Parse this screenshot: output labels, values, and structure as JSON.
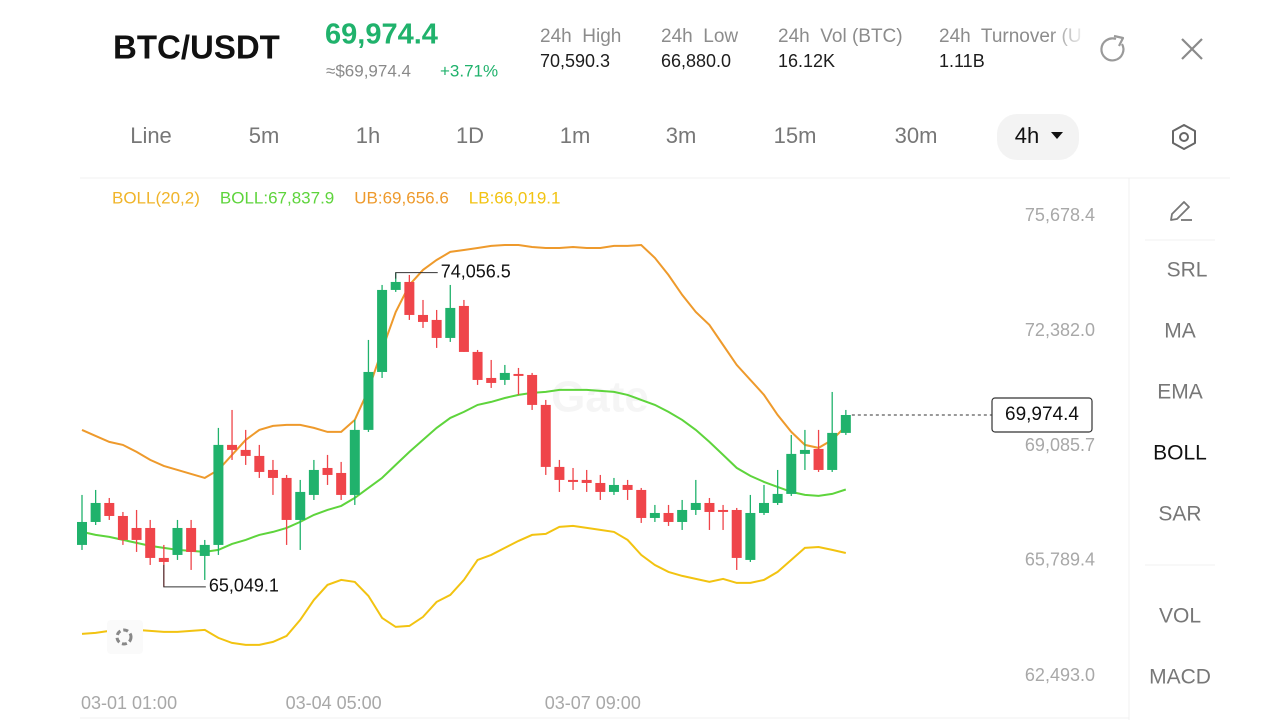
{
  "header": {
    "symbol": "BTC/USDT",
    "price": "69,974.4",
    "approx_price": "≈$69,974.4",
    "change": "+3.71%",
    "stats": [
      {
        "label": "24h  High",
        "value": "70,590.3"
      },
      {
        "label": "24h  Low",
        "value": "66,880.0"
      },
      {
        "label": "24h  Vol (BTC)",
        "value": "16.12K"
      },
      {
        "label": "24h  Turnover (U",
        "value": "1.11B"
      }
    ]
  },
  "intervals": [
    "Line",
    "5m",
    "1h",
    "1D",
    "1m",
    "3m",
    "15m",
    "30m",
    "4h"
  ],
  "active_interval": 8,
  "indicators": [
    "SRL",
    "MA",
    "EMA",
    "BOLL",
    "SAR",
    "VOL",
    "MACD"
  ],
  "active_indicator": 3,
  "chart_data": {
    "type": "candlestick",
    "indicator_legend": [
      {
        "text": "BOLL(20,2)",
        "color": "#f0b429"
      },
      {
        "text": "BOLL:67,837.9",
        "color": "#5ed43c"
      },
      {
        "text": "UB:69,656.6",
        "color": "#ee9a2c"
      },
      {
        "text": "LB:66,019.1",
        "color": "#f2c311"
      }
    ],
    "watermark": "Gate",
    "categories": [
      "03-01 01:00",
      null,
      null,
      null,
      null,
      null,
      null,
      null,
      null,
      null,
      null,
      null,
      null,
      null,
      null,
      "03-04 05:00",
      null,
      null,
      null,
      null,
      null,
      null,
      null,
      null,
      null,
      null,
      null,
      null,
      null,
      null,
      null,
      null,
      null,
      null,
      "03-07 09:00",
      null,
      null,
      null,
      null,
      null,
      null,
      null,
      null,
      null,
      null,
      null,
      null,
      null,
      null,
      null,
      null,
      null,
      null,
      null,
      null,
      null,
      null
    ],
    "up_color": "#20b26c",
    "down_color": "#ef454a",
    "open": [
      66250,
      66908,
      67453,
      67080,
      66736,
      66736,
      65877,
      65963,
      66736,
      65934,
      66250,
      69117,
      68973,
      68801,
      68399,
      68170,
      66966,
      67683,
      68456,
      68313,
      67683,
      69547,
      71208,
      73559,
      73788,
      72842,
      72699,
      72183,
      73100,
      71782,
      71036,
      70979,
      71151,
      71122,
      70263,
      68486,
      68113,
      68113,
      68026,
      67769,
      67969,
      67826,
      67023,
      67166,
      66908,
      67252,
      67453,
      67252,
      67252,
      65820,
      67166,
      67453,
      67712,
      68859,
      69002,
      68399,
      69461
    ],
    "high": [
      67683,
      67826,
      67596,
      67195,
      67252,
      66966,
      66250,
      66966,
      66966,
      66393,
      69604,
      70119,
      69547,
      69117,
      68686,
      68256,
      68113,
      68686,
      68830,
      68629,
      69833,
      72126,
      73702,
      74056.5,
      73989,
      73272,
      72985,
      73702,
      73272,
      71839,
      71552,
      71409,
      71323,
      71180,
      70406,
      68686,
      68456,
      68399,
      68256,
      68170,
      68113,
      67883,
      67396,
      67396,
      67539,
      68113,
      67596,
      67396,
      67310,
      67683,
      67969,
      68399,
      69403,
      69547,
      69547,
      70635,
      70119
    ],
    "low": [
      66106,
      66822,
      66966,
      66250,
      66049,
      65676,
      65049.1,
      65820,
      65533,
      65246,
      65963,
      68686,
      68543,
      68170,
      67683,
      66250,
      66106,
      67539,
      67969,
      67539,
      67396,
      69489,
      71036,
      73502,
      72699,
      72470,
      71897,
      72069,
      71782,
      70836,
      70750,
      70836,
      70549,
      70119,
      68256,
      67769,
      67826,
      67769,
      67539,
      67683,
      67539,
      66880,
      66908,
      66794,
      66679,
      67109,
      66679,
      66679,
      65533,
      65762,
      67109,
      67396,
      67654,
      68399,
      68342,
      68342,
      69403
    ],
    "close": [
      66908,
      67453,
      67080,
      66393,
      66393,
      65877,
      65762,
      66736,
      66049,
      66250,
      69117,
      68973,
      68801,
      68342,
      68170,
      66966,
      67769,
      68399,
      68256,
      67683,
      69547,
      71208,
      73559,
      73788,
      72842,
      72642,
      72183,
      73043,
      71782,
      70979,
      70893,
      71180,
      71094,
      70263,
      68486,
      68113,
      68055,
      68026,
      67769,
      67969,
      67826,
      67023,
      67166,
      66908,
      67252,
      67453,
      67195,
      67195,
      65877,
      67166,
      67453,
      67712,
      68859,
      68973,
      68399,
      69461,
      69974.4
    ],
    "bands": {
      "upper": {
        "color": "#ee9a2c",
        "values": [
          69546,
          69374,
          69202,
          69116,
          68916,
          68686,
          68514,
          68400,
          68285,
          68170,
          68400,
          68830,
          69260,
          69546,
          69661,
          69690,
          69690,
          69604,
          69489,
          69489,
          69833,
          70693,
          71839,
          72928,
          73702,
          74132,
          74418,
          74648,
          74705,
          74762,
          74820,
          74848,
          74848,
          74791,
          74762,
          74762,
          74791,
          74762,
          74762,
          74820,
          74820,
          74848,
          74476,
          73988,
          73416,
          72928,
          72556,
          71982,
          71409,
          70979,
          70549,
          69976,
          69489,
          69116,
          69030,
          69260,
          69656.6
        ]
      },
      "middle": {
        "color": "#5ed43c",
        "values": [
          66623,
          66537,
          66480,
          66394,
          66308,
          66222,
          66164,
          66107,
          66078,
          66050,
          66107,
          66279,
          66394,
          66537,
          66623,
          66738,
          66910,
          67110,
          67253,
          67368,
          67597,
          67884,
          68170,
          68543,
          68916,
          69260,
          69604,
          69890,
          70062,
          70263,
          70349,
          70463,
          70549,
          70607,
          70635,
          70693,
          70693,
          70693,
          70664,
          70635,
          70549,
          70406,
          70263,
          70062,
          69833,
          69546,
          69202,
          68830,
          68457,
          68228,
          68056,
          67913,
          67769,
          67683,
          67654,
          67712,
          67837.9
        ]
      },
      "lower": {
        "color": "#f2c311",
        "values": [
          63700,
          63729,
          63786,
          63786,
          63814,
          63786,
          63757,
          63757,
          63786,
          63814,
          63585,
          63442,
          63384,
          63384,
          63470,
          63642,
          64101,
          64674,
          65104,
          65247,
          65190,
          64789,
          64158,
          63900,
          63929,
          64187,
          64617,
          64817,
          65247,
          65820,
          65963,
          66164,
          66365,
          66537,
          66566,
          66766,
          66795,
          66738,
          66680,
          66623,
          66394,
          65963,
          65676,
          65476,
          65362,
          65276,
          65190,
          65276,
          65161,
          65161,
          65247,
          65476,
          65820,
          66164,
          66192,
          66107,
          66019.1
        ]
      }
    },
    "ylim": [
      62493.0,
      75678.4
    ],
    "yticks": [
      {
        "value": 75678.4,
        "label": "75,678.4"
      },
      {
        "value": 72382.0,
        "label": "72,382.0"
      },
      {
        "value": 69085.7,
        "label": "69,085.7"
      },
      {
        "value": 65789.4,
        "label": "65,789.4"
      },
      {
        "value": 62493.0,
        "label": "62,493.0"
      }
    ],
    "annotations": [
      {
        "value": 74056.5,
        "label": "74,056.5"
      },
      {
        "value": 65049.1,
        "label": "65,049.1"
      }
    ],
    "last_price": {
      "value": 69974.4,
      "label": "69,974.4"
    }
  }
}
